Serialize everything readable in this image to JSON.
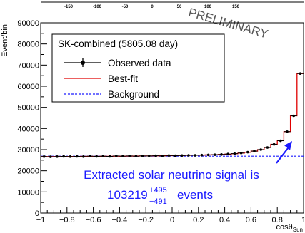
{
  "chart_data": {
    "type": "step",
    "ylabel": "Event/bin",
    "xlabel": "cosθ",
    "xlabel_sub": "Sun",
    "xlim": [
      -1,
      1
    ],
    "ylim": [
      0,
      90000
    ],
    "y_ticks": [
      0,
      10000,
      20000,
      30000,
      40000,
      50000,
      60000,
      70000,
      80000,
      90000
    ],
    "x_ticks": [
      -1,
      -0.8,
      -0.6,
      -0.4,
      -0.2,
      0,
      0.2,
      0.4,
      0.6,
      0.8,
      1
    ],
    "x_tick_labels": [
      "−1",
      "−0.8",
      "−0.6",
      "−0.4",
      "−0.2",
      "0",
      "0.2",
      "0.4",
      "0.6",
      "0.8",
      "1"
    ],
    "top_axis_tick_labels": [
      "-150",
      "-100",
      "-50",
      "0",
      "50",
      "100",
      "150"
    ],
    "bins": 40,
    "observed": [
      26700,
      26600,
      26700,
      26800,
      26700,
      26800,
      26700,
      26900,
      26800,
      26900,
      26800,
      27000,
      26900,
      27000,
      26900,
      27000,
      27000,
      27100,
      27000,
      27200,
      27100,
      27200,
      27300,
      27300,
      27400,
      27500,
      27600,
      27700,
      27900,
      28100,
      28400,
      28800,
      29300,
      30000,
      31000,
      32500,
      34200,
      38500,
      46000,
      66000
    ],
    "best_fit": [
      26700,
      26700,
      26700,
      26700,
      26750,
      26750,
      26800,
      26800,
      26800,
      26850,
      26850,
      26900,
      26900,
      26950,
      26950,
      27000,
      27000,
      27050,
      27100,
      27150,
      27200,
      27250,
      27300,
      27350,
      27400,
      27500,
      27600,
      27700,
      27850,
      28050,
      28350,
      28750,
      29300,
      30000,
      31000,
      32500,
      34300,
      38500,
      46000,
      66000
    ],
    "background": 26900,
    "legend": {
      "title": "SK-combined (5805.08 day)",
      "entries": [
        {
          "label": "Observed data",
          "color": "#000000",
          "style": "marker"
        },
        {
          "label": "Best-fit",
          "color": "#e00000",
          "style": "line"
        },
        {
          "label": "Background",
          "color": "#1a1aff",
          "style": "dashed"
        }
      ]
    },
    "annotation": {
      "line1": "Extracted solar neutrino signal is",
      "value": "103219",
      "err_up": "+495",
      "err_down": "−491",
      "suffix": "events"
    },
    "watermark": "PRELIMINARY",
    "colors": {
      "observed": "#000000",
      "best_fit": "#e00000",
      "background": "#1a1aff",
      "annotation": "#1a1aff"
    }
  }
}
